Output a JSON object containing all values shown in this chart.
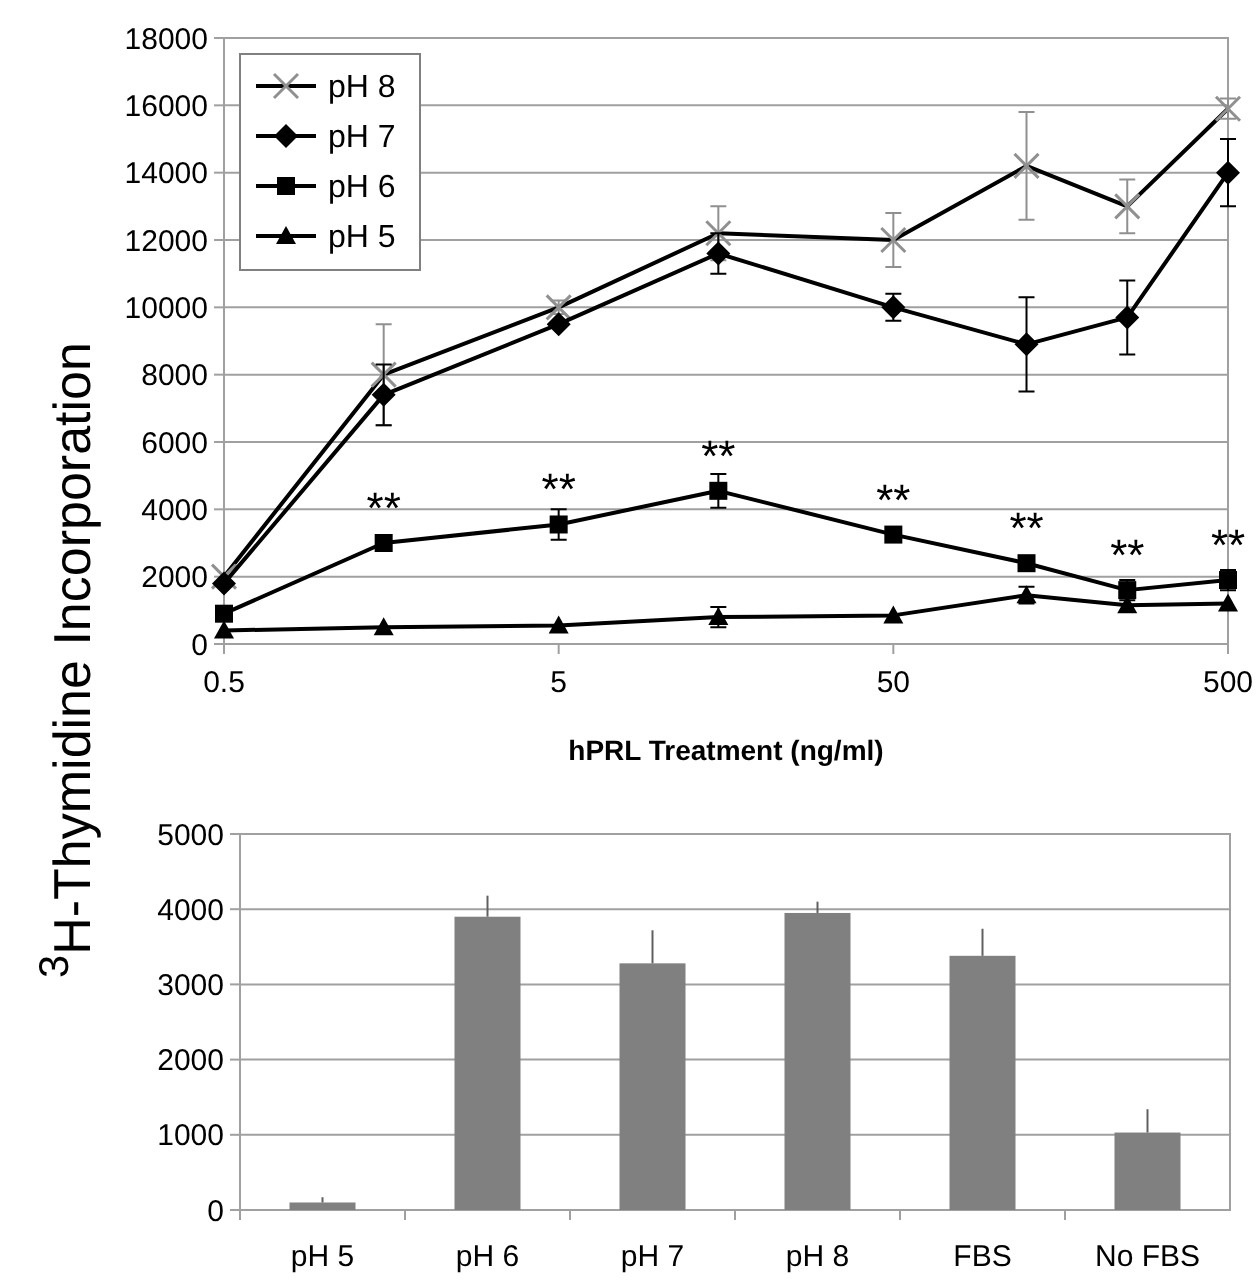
{
  "chart_data": [
    {
      "type": "line",
      "xlabel": "hPRL Treatment (ng/ml)",
      "ylabel": "$^{3}$H-Thymidine Incorporation",
      "x": [
        0.5,
        1.5,
        5,
        15,
        50,
        125,
        250,
        500
      ],
      "log": "x",
      "xlim": [
        0.5,
        500
      ],
      "xticks": [
        0.5,
        5,
        50,
        500
      ],
      "ylim": [
        0,
        18000
      ],
      "yticks": [
        0,
        2000,
        4000,
        6000,
        8000,
        10000,
        12000,
        14000,
        16000,
        18000
      ],
      "grid": "y",
      "legend": "top left",
      "series": [
        {
          "name": "pH 8",
          "color": "#909090",
          "marker": "cross",
          "values": [
            2000,
            8000,
            10000,
            12200,
            12000,
            14200,
            13000,
            15900
          ],
          "errors": [
            null,
            1500,
            200,
            800,
            800,
            1600,
            800,
            300
          ]
        },
        {
          "name": "pH 7",
          "color": "#000000",
          "marker": "diamond",
          "values": [
            1800,
            7400,
            9500,
            11600,
            10000,
            8900,
            9700,
            14000
          ],
          "errors": [
            null,
            900,
            null,
            600,
            400,
            1400,
            1100,
            1000
          ]
        },
        {
          "name": "pH 6",
          "color": "#000000",
          "marker": "square",
          "values": [
            900,
            3000,
            3550,
            4550,
            3250,
            2400,
            1600,
            1900
          ],
          "errors": [
            null,
            null,
            450,
            500,
            null,
            null,
            300,
            300
          ]
        },
        {
          "name": "pH 5",
          "color": "#000000",
          "marker": "triangle",
          "values": [
            400,
            500,
            550,
            800,
            850,
            1450,
            1150,
            1200
          ],
          "errors": [
            null,
            null,
            null,
            300,
            null,
            250,
            null,
            null
          ]
        }
      ],
      "annotations": [
        {
          "text": "**",
          "x": 1.5,
          "y": 3000
        },
        {
          "text": "**",
          "x": 5,
          "y": 3550
        },
        {
          "text": "**",
          "x": 15,
          "y": 4550
        },
        {
          "text": "**",
          "x": 50,
          "y": 3250
        },
        {
          "text": "**",
          "x": 125,
          "y": 2400
        },
        {
          "text": "**",
          "x": 250,
          "y": 1600
        },
        {
          "text": "**",
          "x": 500,
          "y": 1900
        }
      ]
    },
    {
      "type": "bar",
      "categories": [
        "pH 5",
        "pH 6",
        "pH 7",
        "pH 8",
        "FBS",
        "No FBS"
      ],
      "values": [
        100,
        3900,
        3280,
        3950,
        3380,
        1030
      ],
      "errors": [
        [
          100,
          170
        ],
        [
          3900,
          4180
        ],
        [
          3280,
          3720
        ],
        [
          3950,
          4100
        ],
        [
          3380,
          3740
        ],
        [
          1030,
          1340
        ]
      ],
      "color": "#808080",
      "ylim": [
        0,
        5000
      ],
      "yticks": [
        0,
        1000,
        2000,
        3000,
        4000,
        5000
      ],
      "grid": "y"
    }
  ]
}
